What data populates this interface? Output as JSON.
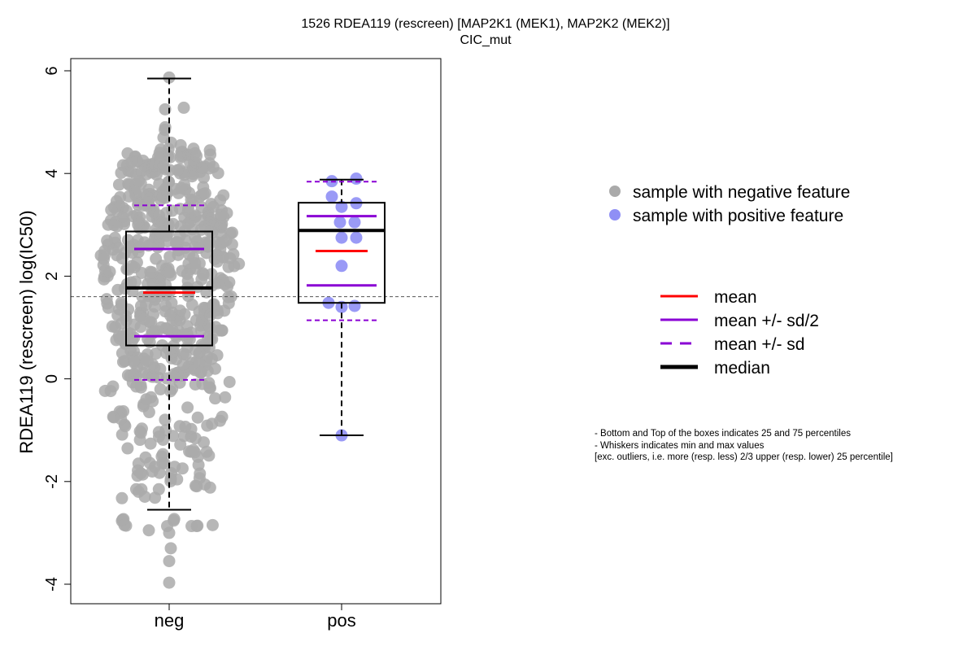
{
  "chart_data": {
    "type": "box",
    "title_line1": "1526 RDEA119 (rescreen) [MAP2K1 (MEK1), MAP2K2 (MEK2)]",
    "title_line2": "CIC_mut",
    "ylabel": "RDEA119 (rescreen) log(IC50)",
    "xlabel": "",
    "ylim": [
      -4.4,
      6.2
    ],
    "yticks": [
      -4,
      -2,
      0,
      2,
      4,
      6
    ],
    "ytick_labels": [
      "-4",
      "-2",
      "0",
      "2",
      "4",
      "6"
    ],
    "reference_line_y": 1.6,
    "categories": [
      "neg",
      "pos"
    ],
    "groups": [
      {
        "name": "neg",
        "point_color": "#aaaaaa",
        "whisker_low": -2.55,
        "q1": 0.65,
        "median": 1.77,
        "q3": 2.87,
        "whisker_high": 5.85,
        "mean": 1.68,
        "mean_minus_half_sd": 0.83,
        "mean_plus_half_sd": 2.53,
        "mean_minus_sd": -0.02,
        "mean_plus_sd": 3.38,
        "outliers": [
          -2.85,
          -2.95,
          -3.0,
          -3.3,
          -3.55,
          -3.97
        ]
      },
      {
        "name": "pos",
        "point_color": "#8f8ff5",
        "whisker_low": -1.1,
        "q1": 1.48,
        "median": 2.89,
        "q3": 3.43,
        "whisker_high": 3.88,
        "mean": 2.49,
        "mean_minus_half_sd": 1.82,
        "mean_plus_half_sd": 3.17,
        "mean_minus_sd": 1.14,
        "mean_plus_sd": 3.84,
        "points": [
          3.9,
          3.85,
          3.55,
          3.42,
          3.35,
          3.05,
          3.05,
          2.75,
          2.75,
          2.2,
          1.48,
          1.42,
          1.4,
          -1.1
        ]
      }
    ],
    "colors": {
      "mean": "#ff0000",
      "sd": "#8a00d4",
      "median": "#000000",
      "box": "#000000",
      "reference": "#555555"
    }
  },
  "legend_points": [
    {
      "label": "sample with negative feature",
      "color": "#aaaaaa"
    },
    {
      "label": "sample with positive feature",
      "color": "#8f8ff5"
    }
  ],
  "legend_lines": [
    {
      "label": "mean",
      "style": "solid",
      "color": "#ff0000"
    },
    {
      "label": "mean +/- sd/2",
      "style": "solid",
      "color": "#8a00d4"
    },
    {
      "label": "mean +/- sd",
      "style": "dashed",
      "color": "#8a00d4"
    },
    {
      "label": "median",
      "style": "thick",
      "color": "#000000"
    }
  ],
  "notes": [
    "- Bottom and Top of the boxes indicates 25 and 75 percentiles",
    "- Whiskers indicates min and max values",
    "[exc. outliers, i.e. more (resp. less) 2/3 upper (resp. lower) 25 percentile]"
  ]
}
